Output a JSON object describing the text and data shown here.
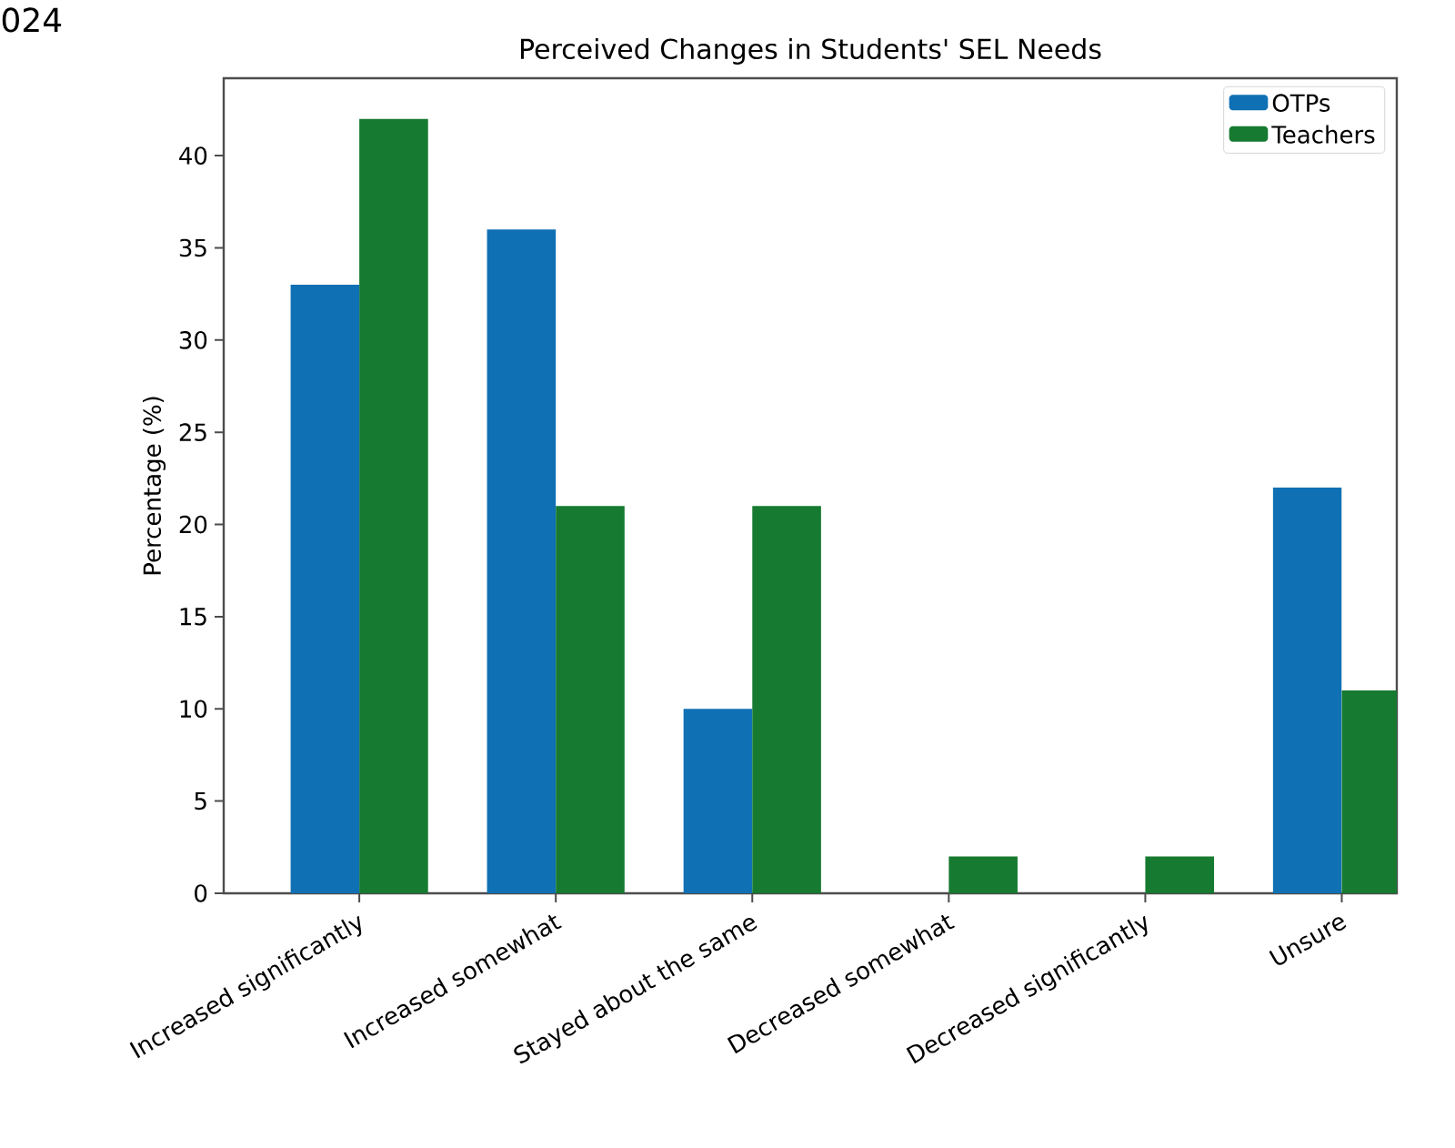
{
  "chart_data": {
    "type": "bar",
    "title": "Perceived Changes in Students' SEL Needs",
    "ylabel": "Percentage (%)",
    "categories": [
      "Increased significantly",
      "Increased somewhat",
      "Stayed about the same",
      "Decreased somewhat",
      "Decreased significantly",
      "Unsure"
    ],
    "series": [
      {
        "name": "OTPs",
        "color": "#1070b4",
        "values": [
          33,
          36,
          10,
          0,
          0,
          22
        ]
      },
      {
        "name": "Teachers",
        "color": "#167a30",
        "values": [
          42,
          21,
          21,
          2,
          2,
          11
        ]
      }
    ],
    "ylim": [
      0,
      44.2
    ],
    "yticks": [
      0,
      5,
      10,
      15,
      20,
      25,
      30,
      35,
      40
    ],
    "legend": "top right",
    "grid": false,
    "annotations": [
      "024"
    ]
  }
}
